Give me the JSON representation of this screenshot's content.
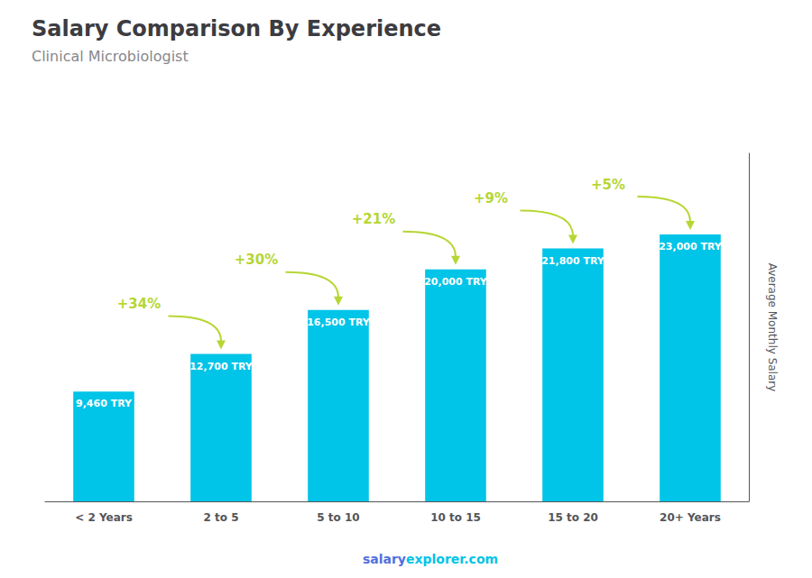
{
  "chart_data": {
    "type": "bar",
    "title": "Salary Comparison By Experience",
    "subtitle": "Clinical Microbiologist",
    "categories": [
      "< 2 Years",
      "2 to 5",
      "5 to 10",
      "10 to 15",
      "15 to 20",
      "20+ Years"
    ],
    "values": [
      9460,
      12700,
      16500,
      20000,
      21800,
      23000
    ],
    "value_labels": [
      "9,460 TRY",
      "12,700 TRY",
      "16,500 TRY",
      "20,000 TRY",
      "21,800 TRY",
      "23,000 TRY"
    ],
    "data_labels": true,
    "color": "#00C4E8",
    "ylabel": "Average Monthly Salary",
    "ylim": [
      0,
      30000
    ],
    "grid": false,
    "tick_labels": "x",
    "annotations": [
      "+34%",
      "+30%",
      "+21%",
      "+9%",
      "+5%"
    ],
    "footer": [
      "salary",
      "explorer.com"
    ]
  }
}
